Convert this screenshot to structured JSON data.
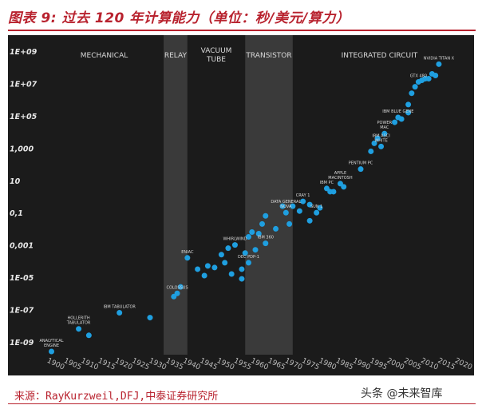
{
  "title": "图表 9: 过去 120 年计算能力（单位：秒/美元/算力）",
  "source": "来源：RayKurzweil,DFJ,中泰证券研究所",
  "watermark": "头条 @未来智库",
  "colors": {
    "point": "#1f9fe0",
    "background": "#1b1b1b",
    "band": "#3a3a3a",
    "accent": "#b8222e"
  },
  "chart_data": {
    "type": "scatter",
    "title": "",
    "xlabel": "",
    "ylabel": "",
    "xlim": [
      1897,
      2021
    ],
    "ylim": [
      -9.6,
      9.8
    ],
    "y_scale": "log",
    "grid": false,
    "x_ticks": [
      1900,
      1905,
      1910,
      1915,
      1920,
      1925,
      1930,
      1935,
      1940,
      1945,
      1950,
      1955,
      1960,
      1965,
      1970,
      1975,
      1980,
      1985,
      1990,
      1995,
      2000,
      2005,
      2010,
      2015,
      2020
    ],
    "y_ticks": [
      {
        "log": 9,
        "label": "1E+09"
      },
      {
        "log": 7,
        "label": "1E+07"
      },
      {
        "log": 5,
        "label": "1E+05"
      },
      {
        "log": 3,
        "label": "1,000"
      },
      {
        "log": 1,
        "label": "10"
      },
      {
        "log": -1,
        "label": "0,1"
      },
      {
        "log": -3,
        "label": "0,001"
      },
      {
        "log": -5,
        "label": "1E-05"
      },
      {
        "log": -7,
        "label": "1E-07"
      },
      {
        "log": -9,
        "label": "1E-09"
      }
    ],
    "eras": [
      {
        "label": "MECHANICAL",
        "start": 1897,
        "end": 1932,
        "shaded": false
      },
      {
        "label": "RELAY",
        "start": 1932,
        "end": 1939,
        "shaded": true
      },
      {
        "label": "VACUUM TUBE",
        "start": 1939,
        "end": 1956,
        "shaded": false
      },
      {
        "label": "TRANSISTOR",
        "start": 1956,
        "end": 1970,
        "shaded": true
      },
      {
        "label": "INTEGRATED CIRCUIT",
        "start": 1970,
        "end": 2021,
        "shaded": false
      }
    ],
    "points": [
      {
        "x": 1899,
        "y": -9.6
      },
      {
        "x": 1907,
        "y": -8.2
      },
      {
        "x": 1910,
        "y": -8.6
      },
      {
        "x": 1919,
        "y": -7.2
      },
      {
        "x": 1928,
        "y": -7.5
      },
      {
        "x": 1935,
        "y": -6.2
      },
      {
        "x": 1936,
        "y": -6.0
      },
      {
        "x": 1937,
        "y": -5.6
      },
      {
        "x": 1939,
        "y": -3.8
      },
      {
        "x": 1942,
        "y": -4.5
      },
      {
        "x": 1944,
        "y": -4.9
      },
      {
        "x": 1945,
        "y": -4.3
      },
      {
        "x": 1947,
        "y": -4.4
      },
      {
        "x": 1949,
        "y": -3.6
      },
      {
        "x": 1950,
        "y": -4.1
      },
      {
        "x": 1951,
        "y": -3.2
      },
      {
        "x": 1952,
        "y": -4.8
      },
      {
        "x": 1953,
        "y": -3.0
      },
      {
        "x": 1955,
        "y": -4.5
      },
      {
        "x": 1955,
        "y": -5.1
      },
      {
        "x": 1956,
        "y": -3.5
      },
      {
        "x": 1957,
        "y": -2.5
      },
      {
        "x": 1957,
        "y": -4.1
      },
      {
        "x": 1958,
        "y": -2.2
      },
      {
        "x": 1959,
        "y": -3.3
      },
      {
        "x": 1960,
        "y": -2.3
      },
      {
        "x": 1961,
        "y": -1.7
      },
      {
        "x": 1962,
        "y": -1.2
      },
      {
        "x": 1962,
        "y": -2.9
      },
      {
        "x": 1965,
        "y": -2.0
      },
      {
        "x": 1967,
        "y": -0.6
      },
      {
        "x": 1968,
        "y": -1.0
      },
      {
        "x": 1969,
        "y": -1.7
      },
      {
        "x": 1970,
        "y": -0.6
      },
      {
        "x": 1972,
        "y": -0.9
      },
      {
        "x": 1973,
        "y": -0.3
      },
      {
        "x": 1975,
        "y": -0.5
      },
      {
        "x": 1975,
        "y": -1.5
      },
      {
        "x": 1977,
        "y": -1.0
      },
      {
        "x": 1978,
        "y": -0.7
      },
      {
        "x": 1980,
        "y": 0.5
      },
      {
        "x": 1981,
        "y": 0.3
      },
      {
        "x": 1982,
        "y": 0.3
      },
      {
        "x": 1984,
        "y": 0.8
      },
      {
        "x": 1985,
        "y": 0.6
      },
      {
        "x": 1990,
        "y": 1.7
      },
      {
        "x": 1993,
        "y": 2.8
      },
      {
        "x": 1994,
        "y": 3.3
      },
      {
        "x": 1995,
        "y": 3.6
      },
      {
        "x": 1996,
        "y": 3.1
      },
      {
        "x": 1997,
        "y": 3.9
      },
      {
        "x": 2000,
        "y": 4.6
      },
      {
        "x": 2001,
        "y": 4.9
      },
      {
        "x": 2002,
        "y": 4.8
      },
      {
        "x": 2004,
        "y": 5.2
      },
      {
        "x": 2004,
        "y": 5.7
      },
      {
        "x": 2005,
        "y": 6.4
      },
      {
        "x": 2006,
        "y": 6.8
      },
      {
        "x": 2007,
        "y": 7.1
      },
      {
        "x": 2008,
        "y": 7.2
      },
      {
        "x": 2009,
        "y": 7.3
      },
      {
        "x": 2010,
        "y": 7.3
      },
      {
        "x": 2011,
        "y": 7.6
      },
      {
        "x": 2012,
        "y": 7.5
      },
      {
        "x": 2013,
        "y": 8.2
      }
    ],
    "annotations": [
      {
        "text": "ANALYTICAL ENGINE",
        "x": 1899,
        "y": -9.6,
        "lines": [
          "ANALYTICAL",
          "ENGINE"
        ]
      },
      {
        "text": "HOLLERITH TABULATOR",
        "x": 1907,
        "y": -8.2,
        "lines": [
          "HOLLERITH",
          "TABULATOR"
        ]
      },
      {
        "text": "IBM TABULATOR",
        "x": 1919,
        "y": -7.2,
        "lines": [
          "IBM TABULATOR"
        ]
      },
      {
        "text": "COLOSSUS",
        "x": 1936,
        "y": -6.0,
        "lines": [
          "COLOSSUS"
        ]
      },
      {
        "text": "ENIAC",
        "x": 1939,
        "y": -3.8,
        "lines": [
          "ENIAC"
        ]
      },
      {
        "text": "WHIRLWIND",
        "x": 1953,
        "y": -3.0,
        "lines": [
          "WHIRLWIND"
        ]
      },
      {
        "text": "DEC PDP-1",
        "x": 1957,
        "y": -4.1,
        "lines": [
          "DEC PDP-1"
        ]
      },
      {
        "text": "IBM 360",
        "x": 1962,
        "y": -2.9,
        "lines": [
          "IBM 360"
        ]
      },
      {
        "text": "DATA GENERAL NOVA",
        "x": 1968,
        "y": -1.0,
        "lines": [
          "DATA GENERAL",
          "NOVA"
        ]
      },
      {
        "text": "CRAY 1",
        "x": 1973,
        "y": -0.3,
        "lines": [
          "CRAY 1"
        ]
      },
      {
        "text": "SUN 1",
        "x": 1977,
        "y": -1.0,
        "lines": [
          "SUN 1"
        ]
      },
      {
        "text": "IBM PC",
        "x": 1980,
        "y": 0.5,
        "lines": [
          "IBM PC"
        ]
      },
      {
        "text": "APPLE MACINTOSH",
        "x": 1984,
        "y": 0.8,
        "lines": [
          "APPLE",
          "MACINTOSH"
        ]
      },
      {
        "text": "PENTIUM PC",
        "x": 1990,
        "y": 1.7,
        "lines": [
          "PENTIUM PC"
        ]
      },
      {
        "text": "IBM ASCI WHITE",
        "x": 1996,
        "y": 3.1,
        "lines": [
          "IBM ASCI",
          "WHITE"
        ]
      },
      {
        "text": "POWER MAC",
        "x": 1997,
        "y": 3.9,
        "lines": [
          "POWER",
          "MAC"
        ]
      },
      {
        "text": "IBM BLUE GENE",
        "x": 2001,
        "y": 4.9,
        "lines": [
          "IBM BLUE GENE"
        ]
      },
      {
        "text": "GTX 480",
        "x": 2007,
        "y": 7.1,
        "lines": [
          "GTX 480"
        ]
      },
      {
        "text": "NVIDIA TITAN X",
        "x": 2013,
        "y": 8.2,
        "lines": [
          "NVIDIA TITAN X"
        ]
      }
    ]
  }
}
